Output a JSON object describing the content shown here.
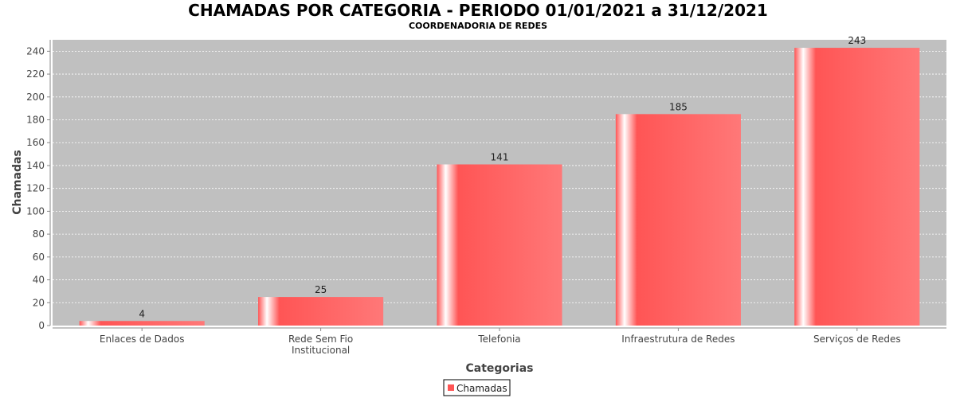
{
  "chart_data": {
    "type": "bar",
    "title": "CHAMADAS POR CATEGORIA - PERIODO 01/01/2021 a 31/12/2021",
    "subtitle": "COORDENADORIA DE REDES",
    "xlabel": "Categorias",
    "ylabel": "Chamadas",
    "categories": [
      [
        "Enlaces de Dados"
      ],
      [
        "Rede Sem Fio",
        "Institucional"
      ],
      [
        "Telefonia"
      ],
      [
        "Infraestrutura de Redes"
      ],
      [
        "Serviços de Redes"
      ]
    ],
    "series": [
      {
        "name": "Chamadas",
        "values": [
          4,
          25,
          141,
          185,
          243
        ]
      }
    ],
    "ylim": [
      0,
      250
    ],
    "yticks": [
      0,
      20,
      40,
      60,
      80,
      100,
      120,
      140,
      160,
      180,
      200,
      220,
      240
    ],
    "grid": true,
    "legend_position": "bottom",
    "colors": {
      "bar": "#ff5555",
      "plot_background": "#c0c0c0",
      "gridline": "#ffffff"
    }
  }
}
